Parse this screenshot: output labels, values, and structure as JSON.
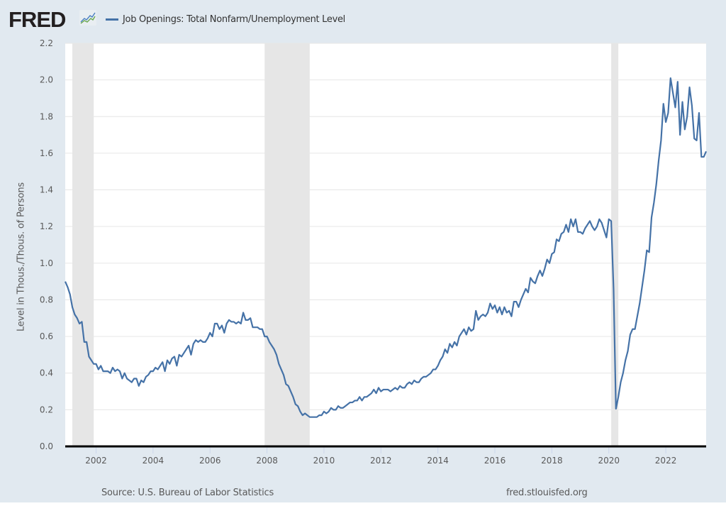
{
  "header": {
    "logo_text": "FRED",
    "logo_icon": "line-chart-icon",
    "legend_label": "Job Openings: Total Nonfarm/Unemployment Level"
  },
  "footer": {
    "source": "Source: U.S. Bureau of Labor Statistics",
    "site": "fred.stlouisfed.org"
  },
  "colors": {
    "background": "#e1e9f0",
    "plot": "#ffffff",
    "series": "#4572a7",
    "recession": "#e6e6e6",
    "grid": "#e6e6e6"
  },
  "chart_data": {
    "type": "line",
    "title": "Job Openings: Total Nonfarm/Unemployment Level",
    "xlabel": "",
    "ylabel": "Level in Thous./Thous. of Persons",
    "ylim": [
      0,
      2.2
    ],
    "xlim": [
      "2000-12",
      "2023-06"
    ],
    "grid": true,
    "legend_position": "top-left",
    "y_ticks": [
      "0.0",
      "0.2",
      "0.4",
      "0.6",
      "0.8",
      "1.0",
      "1.2",
      "1.4",
      "1.6",
      "1.8",
      "2.0",
      "2.2"
    ],
    "x_ticks": [
      "2002",
      "2004",
      "2006",
      "2008",
      "2010",
      "2012",
      "2014",
      "2016",
      "2018",
      "2020",
      "2022"
    ],
    "recessions": [
      {
        "start": "2001-03",
        "end": "2001-11"
      },
      {
        "start": "2007-12",
        "end": "2009-06"
      },
      {
        "start": "2020-02",
        "end": "2020-04"
      }
    ],
    "frequency": "monthly",
    "start": "2000-12",
    "series": [
      {
        "name": "Job Openings: Total Nonfarm/Unemployment Level",
        "values": [
          0.9,
          0.87,
          0.83,
          0.76,
          0.72,
          0.7,
          0.67,
          0.68,
          0.57,
          0.57,
          0.49,
          0.47,
          0.45,
          0.45,
          0.42,
          0.44,
          0.41,
          0.41,
          0.41,
          0.4,
          0.43,
          0.41,
          0.42,
          0.41,
          0.37,
          0.4,
          0.37,
          0.36,
          0.35,
          0.37,
          0.37,
          0.33,
          0.36,
          0.35,
          0.38,
          0.39,
          0.41,
          0.41,
          0.43,
          0.42,
          0.44,
          0.46,
          0.41,
          0.47,
          0.45,
          0.48,
          0.49,
          0.44,
          0.5,
          0.49,
          0.51,
          0.53,
          0.55,
          0.5,
          0.56,
          0.58,
          0.57,
          0.58,
          0.57,
          0.57,
          0.59,
          0.62,
          0.6,
          0.67,
          0.67,
          0.64,
          0.66,
          0.62,
          0.67,
          0.69,
          0.68,
          0.68,
          0.67,
          0.68,
          0.67,
          0.73,
          0.69,
          0.69,
          0.7,
          0.65,
          0.65,
          0.65,
          0.64,
          0.64,
          0.6,
          0.6,
          0.57,
          0.55,
          0.53,
          0.5,
          0.45,
          0.42,
          0.39,
          0.34,
          0.33,
          0.3,
          0.27,
          0.23,
          0.22,
          0.19,
          0.17,
          0.18,
          0.17,
          0.16,
          0.16,
          0.16,
          0.16,
          0.17,
          0.17,
          0.19,
          0.18,
          0.19,
          0.21,
          0.2,
          0.2,
          0.22,
          0.21,
          0.21,
          0.22,
          0.23,
          0.24,
          0.24,
          0.25,
          0.25,
          0.27,
          0.25,
          0.27,
          0.27,
          0.28,
          0.29,
          0.31,
          0.29,
          0.32,
          0.3,
          0.31,
          0.31,
          0.31,
          0.3,
          0.31,
          0.32,
          0.31,
          0.33,
          0.32,
          0.32,
          0.34,
          0.35,
          0.34,
          0.36,
          0.35,
          0.35,
          0.37,
          0.38,
          0.38,
          0.39,
          0.4,
          0.42,
          0.42,
          0.44,
          0.47,
          0.49,
          0.53,
          0.51,
          0.56,
          0.54,
          0.57,
          0.55,
          0.6,
          0.62,
          0.64,
          0.61,
          0.65,
          0.63,
          0.64,
          0.74,
          0.69,
          0.71,
          0.72,
          0.71,
          0.73,
          0.78,
          0.75,
          0.77,
          0.73,
          0.76,
          0.72,
          0.76,
          0.73,
          0.74,
          0.71,
          0.79,
          0.79,
          0.76,
          0.8,
          0.83,
          0.86,
          0.84,
          0.92,
          0.9,
          0.89,
          0.93,
          0.96,
          0.93,
          0.97,
          1.02,
          1.0,
          1.05,
          1.06,
          1.13,
          1.12,
          1.16,
          1.17,
          1.21,
          1.17,
          1.24,
          1.2,
          1.24,
          1.17,
          1.17,
          1.16,
          1.19,
          1.21,
          1.23,
          1.2,
          1.18,
          1.2,
          1.24,
          1.22,
          1.18,
          1.14,
          1.24,
          1.23,
          0.86,
          0.205,
          0.27,
          0.35,
          0.4,
          0.47,
          0.52,
          0.61,
          0.64,
          0.64,
          0.71,
          0.78,
          0.87,
          0.96,
          1.07,
          1.06,
          1.25,
          1.33,
          1.43,
          1.56,
          1.67,
          1.87,
          1.77,
          1.82,
          2.01,
          1.93,
          1.85,
          1.99,
          1.7,
          1.88,
          1.73,
          1.8,
          1.96,
          1.86,
          1.68,
          1.67,
          1.82,
          1.58,
          1.58,
          1.61
        ]
      }
    ]
  }
}
